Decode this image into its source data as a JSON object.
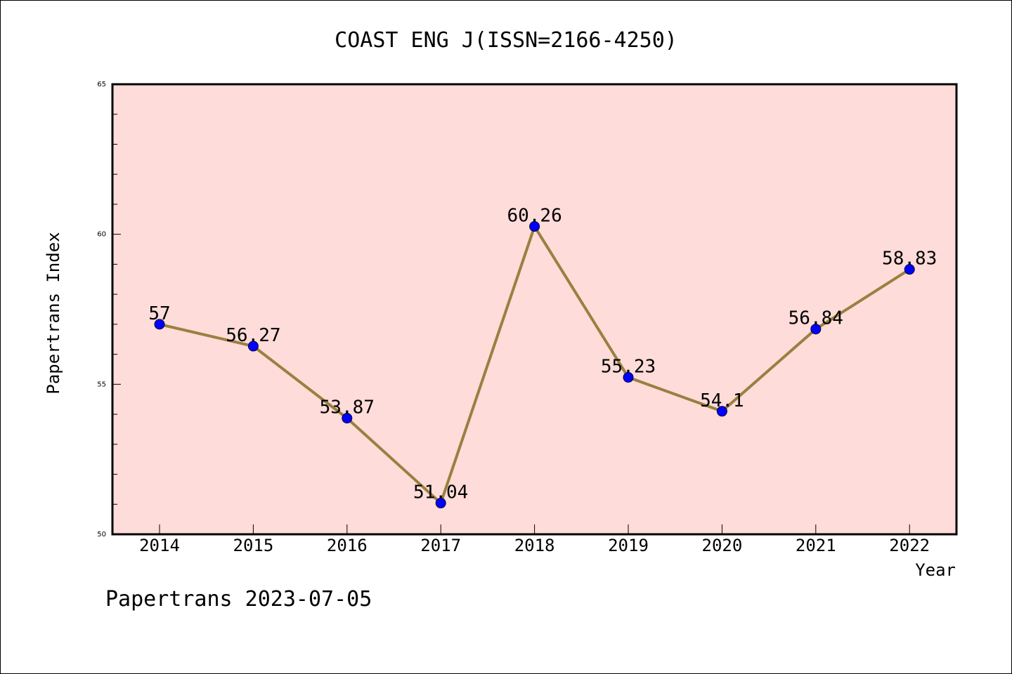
{
  "chart_data": {
    "type": "line",
    "title": "COAST ENG J(ISSN=2166-4250)",
    "xlabel": "Year",
    "ylabel": "Papertrans Index",
    "categories": [
      "2014",
      "2015",
      "2016",
      "2017",
      "2018",
      "2019",
      "2020",
      "2021",
      "2022"
    ],
    "series": [
      {
        "values": [
          57,
          56.27,
          53.87,
          51.04,
          60.26,
          55.23,
          54.1,
          56.84,
          58.83
        ],
        "labels": [
          "57",
          "56.27",
          "53.87",
          "51.04",
          "60.26",
          "55.23",
          "54.1",
          "56.84",
          "58.83"
        ]
      }
    ],
    "ylim": [
      50,
      65
    ],
    "yticks": [
      "50",
      "55",
      "60",
      "65"
    ],
    "grid": false,
    "colors": {
      "plot_background": "#fddcd9",
      "line": "#9a8040",
      "marker": "#0000ff"
    }
  },
  "footer": "Papertrans 2023-07-05"
}
